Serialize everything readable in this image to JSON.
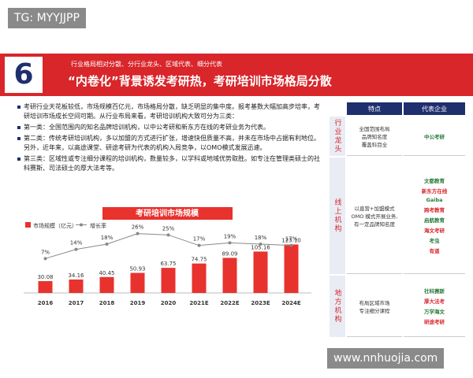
{
  "watermark_top": "TG: MYYJJPP",
  "watermark_bottom": "www.nnhuojia.com",
  "header": {
    "number": "6",
    "subtitle": "行业格局相对分散、分行业龙头、区域代表、细分代表",
    "title": "“内卷化”背景诱发考研热，考研培训市场格局分散"
  },
  "text": {
    "intro": "考研行业天花板较低，市场规模百亿元，市场格局分散，缺乏明显的集中度。报考基数大幅加高步培率，考研培训市场成长空间可期。从行业布局来看，考研培训机构大致可分为三类：",
    "items": [
      "第一类：全国范围内的知名品牌培训机构，以中公考研和新东方在线的考研业务为代表。",
      "第二类：传统考研培训机构，多以加盟的方式进行扩张，增速快但质量不高，并未在市场中占据有利地位。另外，近年来，以高途课堂、研途考研为代表的机构入局竞争，以OMO模式发展迅速。",
      "第三类：区域性或专注细分课程的培训机构，数量较多，以学科或地域优势取胜。如专注在管理类硕士的社科赛斯、司法硕士的厚大法考等。"
    ]
  },
  "chart_data": {
    "type": "bar_line",
    "title": "考研培训市场规模",
    "categories": [
      "2016",
      "2017",
      "2018",
      "2019",
      "2020",
      "2021E",
      "2022E",
      "2023E",
      "2024E"
    ],
    "ylim": [
      0,
      200
    ],
    "y2lim": [
      0,
      30
    ],
    "series": [
      {
        "name": "市场规模（亿元）",
        "color": "#e8322e",
        "values": [
          30.08,
          34.16,
          40.45,
          50.93,
          63.75,
          74.75,
          89.09,
          105.16,
          123.1
        ],
        "value_labels": [
          "30.08",
          "34.16",
          "40.45",
          "50.93",
          "63.75",
          "74.75",
          "89.09",
          "105.16",
          "123.10"
        ]
      },
      {
        "name": "增长率",
        "color": "#888888",
        "axis": "y2",
        "values": [
          7,
          14,
          18,
          26,
          25,
          17,
          19,
          18,
          17
        ],
        "value_labels": [
          "7%",
          "14%",
          "18%",
          "26%",
          "25%",
          "17%",
          "19%",
          "18%",
          "17%"
        ]
      }
    ]
  },
  "table": {
    "headers": [
      "特点",
      "代表企业"
    ],
    "rows": [
      {
        "type": "行业龙头",
        "feature": "全国范围布局\n品牌知名度\n覆盖科目全",
        "companies": [
          "中公考研"
        ]
      },
      {
        "type": "线上机构",
        "feature": "以直营+加盟模式\nOMO 模式开展业务,\n有一定品牌知名度",
        "companies": [
          "文都教育",
          "新东方在线",
          "Gaiba",
          "跨考教育",
          "启航教育",
          "海文考研",
          "考虫",
          "有道"
        ]
      },
      {
        "type": "地方机构",
        "feature": "布局区域市场\n专注细分课程",
        "companies": [
          "社科赛斯",
          "厚大法考",
          "万学海文",
          "研途考研"
        ]
      }
    ]
  }
}
